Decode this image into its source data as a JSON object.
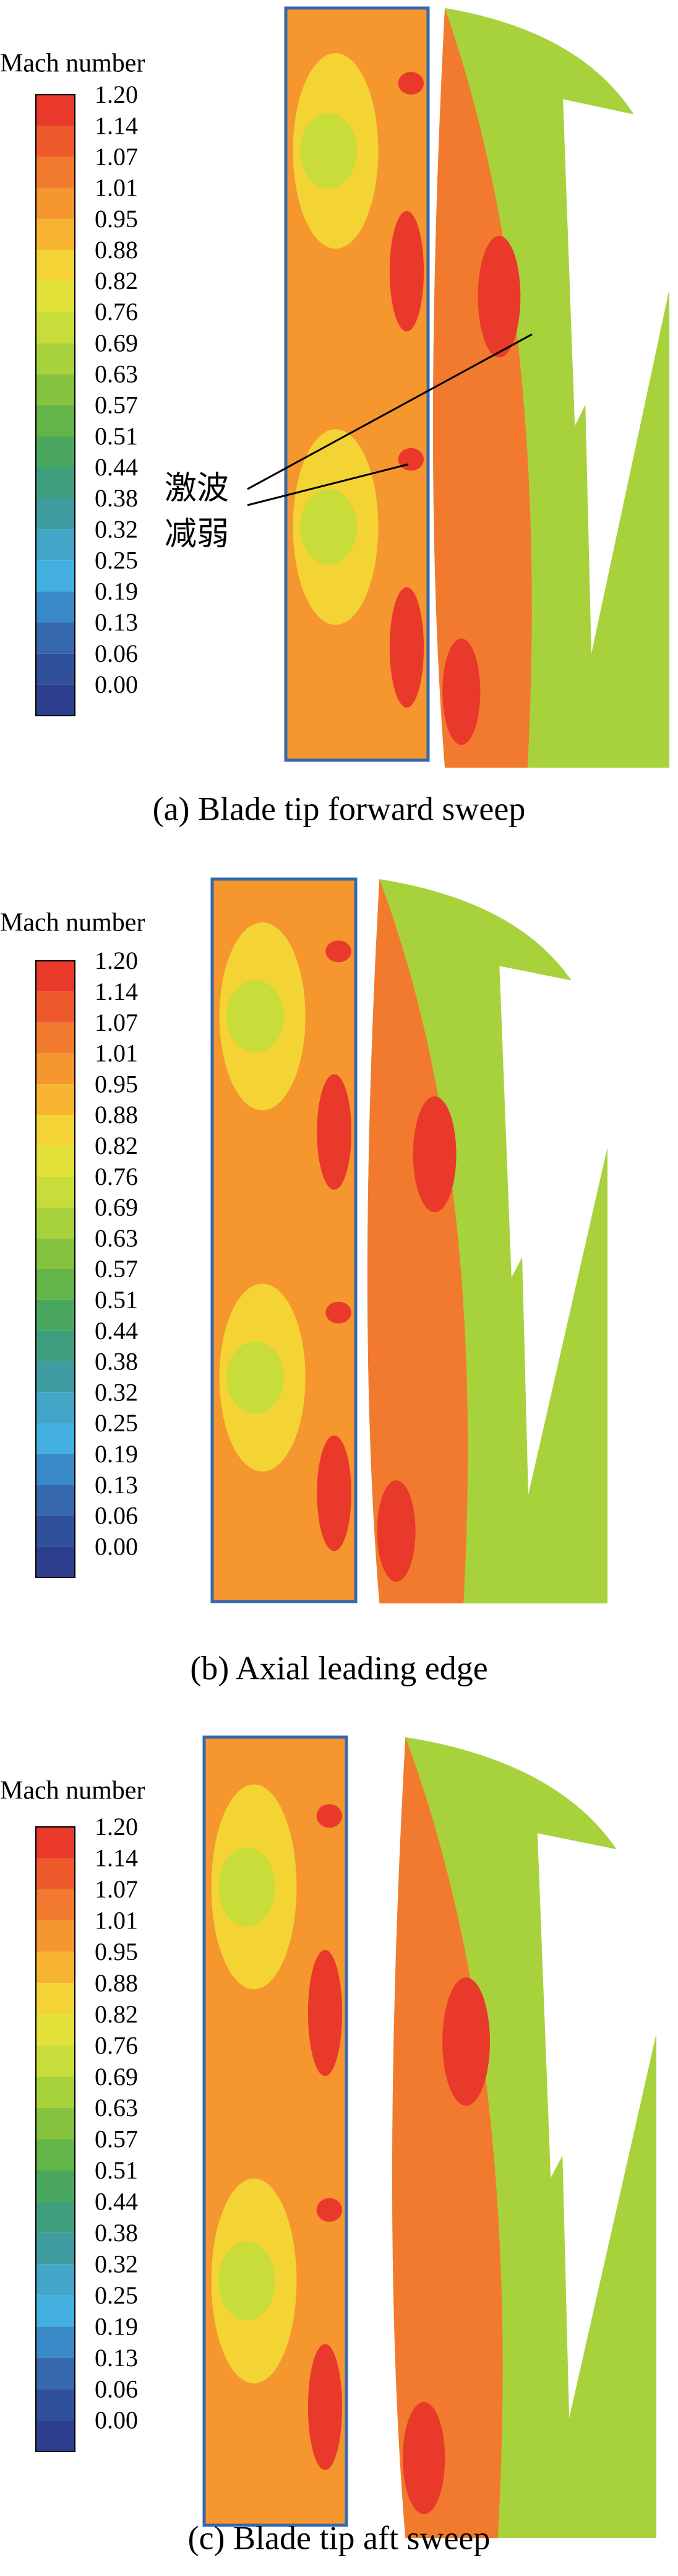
{
  "colorbar_colors": [
    "#e8392a",
    "#ee5a2c",
    "#f27a2e",
    "#f5962f",
    "#f7b431",
    "#f4d335",
    "#e3e239",
    "#c8dc3a",
    "#a8d23c",
    "#86c43f",
    "#63b548",
    "#4aa85e",
    "#3f9e7d",
    "#3f9ca0",
    "#43a6c8",
    "#43b0e0",
    "#3a8ac8",
    "#3568ad",
    "#31509a",
    "#2d3f8c"
  ],
  "panels": [
    {
      "legend_title": "Mach number",
      "legend_labels": [
        "1.20",
        "1.14",
        "1.07",
        "1.01",
        "0.95",
        "0.88",
        "0.82",
        "0.76",
        "0.69",
        "0.63",
        "0.57",
        "0.51",
        "0.44",
        "0.38",
        "0.32",
        "0.25",
        "0.19",
        "0.13",
        "0.06",
        "0.00"
      ],
      "annotation": [
        "激波",
        "减弱"
      ],
      "caption": "(a) Blade tip forward sweep"
    },
    {
      "legend_title": "Mach number",
      "legend_labels": [
        "1.20",
        "1.14",
        "1.07",
        "1.01",
        "0.95",
        "0.88",
        "0.82",
        "0.76",
        "0.69",
        "0.63",
        "0.57",
        "0.51",
        "0.44",
        "0.38",
        "0.32",
        "0.25",
        "0.19",
        "0.13",
        "0.06",
        "0.00"
      ],
      "caption": "(b) Axial leading edge"
    },
    {
      "legend_title": "Mach number",
      "legend_labels": [
        "1.20",
        "1.14",
        "1.07",
        "1.01",
        "0.95",
        "0.88",
        "0.82",
        "0.76",
        "0.69",
        "0.63",
        "0.57",
        "0.51",
        "0.44",
        "0.38",
        "0.32",
        "0.25",
        "0.19",
        "0.13",
        "0.06",
        "0.00"
      ],
      "caption": "(c) Blade tip aft sweep"
    }
  ]
}
